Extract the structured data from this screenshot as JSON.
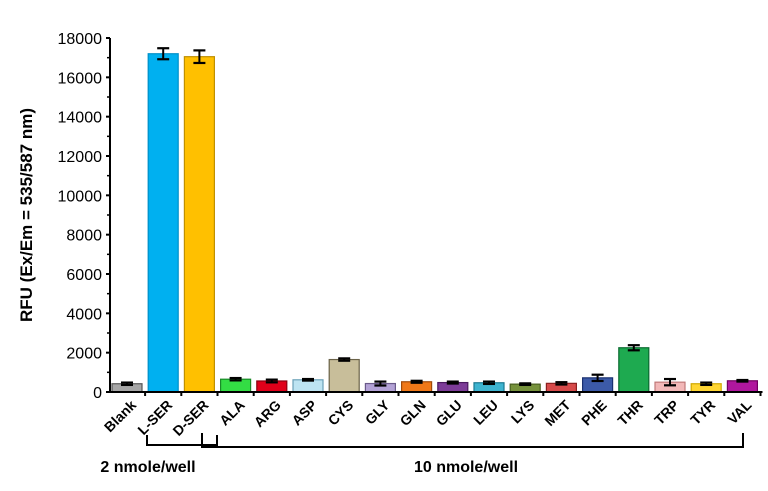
{
  "chart_data": {
    "type": "bar",
    "title": "",
    "xlabel": "",
    "ylabel": "RFU (Ex/Em = 535/587 nm)",
    "ylim": [
      0,
      18000
    ],
    "yticks": [
      0,
      2000,
      4000,
      6000,
      8000,
      10000,
      12000,
      14000,
      16000,
      18000
    ],
    "grid": false,
    "legend": null,
    "categories": [
      "Blank",
      "L-SER",
      "D-SER",
      "ALA",
      "ARG",
      "ASP",
      "CYS",
      "GLY",
      "GLN",
      "GLU",
      "LEU",
      "LYS",
      "MET",
      "PHE",
      "THR",
      "TRP",
      "TYR",
      "VAL"
    ],
    "values": [
      420,
      17200,
      17050,
      650,
      560,
      620,
      1650,
      430,
      520,
      480,
      470,
      400,
      440,
      720,
      2250,
      500,
      420,
      570
    ],
    "errors": [
      60,
      280,
      320,
      60,
      70,
      40,
      60,
      100,
      50,
      50,
      60,
      40,
      60,
      160,
      130,
      160,
      60,
      40
    ],
    "colors": [
      "#a6a6a6",
      "#00b0f0",
      "#ffc000",
      "#33dd44",
      "#e0001a",
      "#bde4f2",
      "#c8be9a",
      "#b3a2d6",
      "#f07818",
      "#7d3c98",
      "#3eb4d0",
      "#76923c",
      "#d64a4a",
      "#3c5aa8",
      "#1eaa50",
      "#f2b8b8",
      "#ffd633",
      "#b0179e"
    ],
    "edge_colors": [
      "#555555",
      "#0090c8",
      "#c09000",
      "#1a8a28",
      "#8a0010",
      "#6aa0b8",
      "#6a6248",
      "#6a5a8a",
      "#a04a08",
      "#4a1a60",
      "#1a7890",
      "#4a6020",
      "#8a2020",
      "#1a3070",
      "#0a6a30",
      "#c07878",
      "#d0a800",
      "#700060"
    ],
    "groups": [
      {
        "label": "2 nmole/well",
        "categories": [
          "L-SER",
          "D-SER"
        ]
      },
      {
        "label": "10 nmole/well",
        "categories": [
          "ALA",
          "ARG",
          "ASP",
          "CYS",
          "GLY",
          "GLN",
          "GLU",
          "LEU",
          "LYS",
          "MET",
          "PHE",
          "THR",
          "TRP",
          "TYR",
          "VAL"
        ]
      }
    ]
  }
}
